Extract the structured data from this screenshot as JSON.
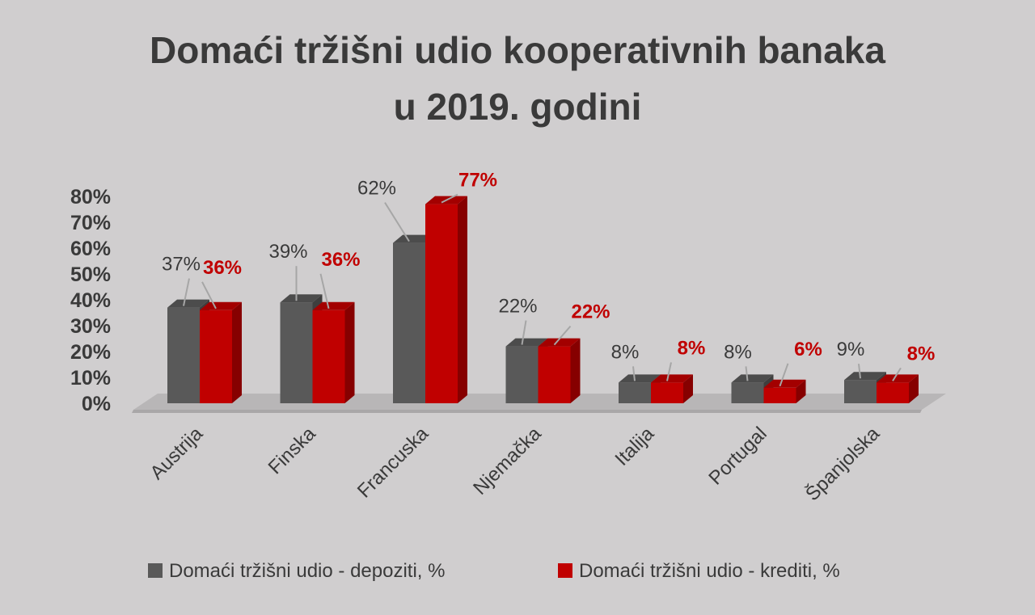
{
  "chart_data": {
    "type": "bar",
    "title_lines": [
      "Domaći tržišni udio kooperativnih banaka",
      "u 2019. godini"
    ],
    "categories": [
      "Austrija",
      "Finska",
      "Francuska",
      "Njemačka",
      "Italija",
      "Portugal",
      "Španjolska"
    ],
    "series": [
      {
        "name": "Domaći tržišni udio - depoziti, %",
        "color": "#595959",
        "values": [
          37,
          39,
          62,
          22,
          8,
          8,
          9
        ],
        "labels": [
          "37%",
          "39%",
          "62%",
          "22%",
          "8%",
          "8%",
          "9%"
        ]
      },
      {
        "name": "Domaći tržišni udio - krediti, %",
        "color": "#c00000",
        "values": [
          36,
          36,
          77,
          22,
          8,
          6,
          8
        ],
        "labels": [
          "36%",
          "36%",
          "77%",
          "22%",
          "8%",
          "6%",
          "8%"
        ]
      }
    ],
    "yticks": [
      "0%",
      "10%",
      "20%",
      "30%",
      "40%",
      "50%",
      "60%",
      "70%",
      "80%"
    ],
    "ylim": [
      0,
      80
    ],
    "grid": false,
    "legend_position": "bottom",
    "style": "3d-column"
  }
}
